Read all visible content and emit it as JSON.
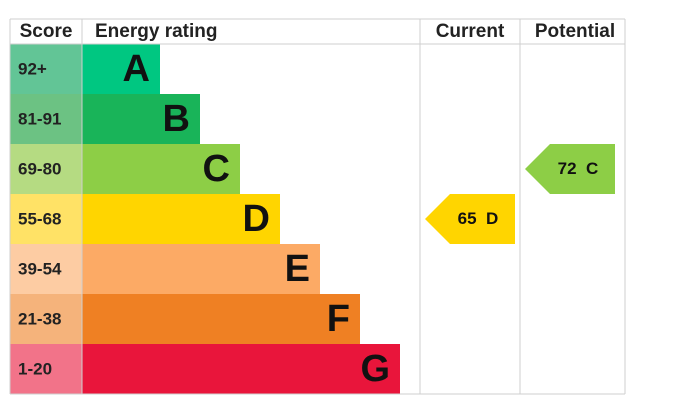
{
  "headers": {
    "score": "Score",
    "rating": "Energy rating",
    "current": "Current",
    "potential": "Potential"
  },
  "bands": [
    {
      "score": "92+",
      "letter": "A",
      "color": "#00c781",
      "light": "#62c596"
    },
    {
      "score": "81-91",
      "letter": "B",
      "color": "#19b459",
      "light": "#6cc283"
    },
    {
      "score": "69-80",
      "letter": "C",
      "color": "#8dce46",
      "light": "#b5db82"
    },
    {
      "score": "55-68",
      "letter": "D",
      "color": "#ffd500",
      "light": "#ffe266"
    },
    {
      "score": "39-54",
      "letter": "E",
      "color": "#fcaa65",
      "light": "#fdcca3"
    },
    {
      "score": "21-38",
      "letter": "F",
      "color": "#ef8023",
      "light": "#f5b37b"
    },
    {
      "score": "1-20",
      "letter": "G",
      "color": "#e9153b",
      "light": "#f27389"
    }
  ],
  "current": {
    "value": 65,
    "rating": "D"
  },
  "potential": {
    "value": 72,
    "rating": "C"
  }
}
